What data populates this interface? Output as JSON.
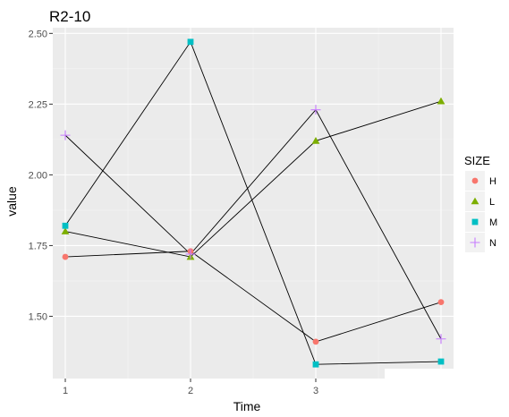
{
  "chart_data": {
    "type": "line",
    "title": "R2-10",
    "xlabel": "Time",
    "ylabel": "value",
    "x": [
      1,
      2,
      3,
      4
    ],
    "x_tick_labels": [
      "1",
      "2",
      "3"
    ],
    "xlim": [
      0.9,
      4.1
    ],
    "ylim": [
      1.28,
      2.52
    ],
    "y_ticks": [
      1.5,
      1.75,
      2.0,
      2.25,
      2.5
    ],
    "y_tick_labels": [
      "1.50",
      "1.75",
      "2.00",
      "2.25",
      "2.50"
    ],
    "grid": true,
    "legend": {
      "title": "SIZE",
      "placement": "right"
    },
    "line_color": "#000000",
    "panel_background": "#ebebeb",
    "series": [
      {
        "name": "H",
        "values": [
          1.71,
          1.73,
          1.41,
          1.55
        ],
        "color": "#f8766d",
        "marker": "circle"
      },
      {
        "name": "L",
        "values": [
          1.8,
          1.71,
          2.12,
          2.26
        ],
        "color": "#7cae00",
        "marker": "triangle"
      },
      {
        "name": "M",
        "values": [
          1.82,
          2.47,
          1.33,
          1.34
        ],
        "color": "#00bfc4",
        "marker": "square"
      },
      {
        "name": "N",
        "values": [
          2.14,
          1.72,
          2.23,
          1.42
        ],
        "color": "#c77cff",
        "marker": "plus"
      }
    ]
  }
}
